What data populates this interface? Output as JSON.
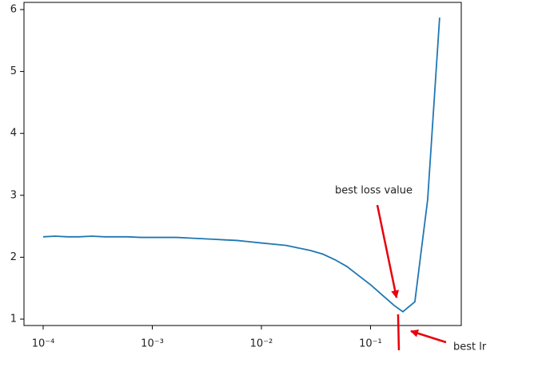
{
  "chart_data": {
    "type": "line",
    "x": [
      0.0001,
      0.0001288,
      0.0001659,
      0.0002136,
      0.00028,
      0.000361,
      0.000464,
      0.000598,
      0.000783,
      0.001,
      0.0013,
      0.00167,
      0.00219,
      0.00282,
      0.00363,
      0.00468,
      0.00603,
      0.00776,
      0.01,
      0.0131,
      0.0169,
      0.0217,
      0.028,
      0.0366,
      0.0472,
      0.0608,
      0.0783,
      0.101,
      0.13,
      0.165,
      0.198,
      0.255,
      0.334,
      0.43
    ],
    "series": [
      {
        "color": "#1f77b4",
        "values": [
          2.33,
          2.34,
          2.33,
          2.33,
          2.34,
          2.33,
          2.33,
          2.33,
          2.32,
          2.32,
          2.32,
          2.32,
          2.31,
          2.3,
          2.29,
          2.28,
          2.27,
          2.25,
          2.23,
          2.21,
          2.19,
          2.15,
          2.11,
          2.05,
          1.96,
          1.85,
          1.7,
          1.55,
          1.38,
          1.22,
          1.12,
          1.28,
          2.93,
          5.87
        ]
      }
    ],
    "xscale": "log",
    "xlim": [
      6.67e-05,
      0.679
    ],
    "ylim": [
      0.897,
      6.116
    ],
    "xticks": [
      {
        "value": 0.0001,
        "label": "10⁻⁴"
      },
      {
        "value": 0.001,
        "label": "10⁻³"
      },
      {
        "value": 0.01,
        "label": "10⁻²"
      },
      {
        "value": 0.1,
        "label": "10⁻¹"
      }
    ],
    "yticks": [
      1,
      2,
      3,
      4,
      5,
      6
    ],
    "best_lr": 0.179,
    "annotation_color": "#e8000b",
    "annotations": [
      "best loss value",
      "best lr"
    ]
  }
}
